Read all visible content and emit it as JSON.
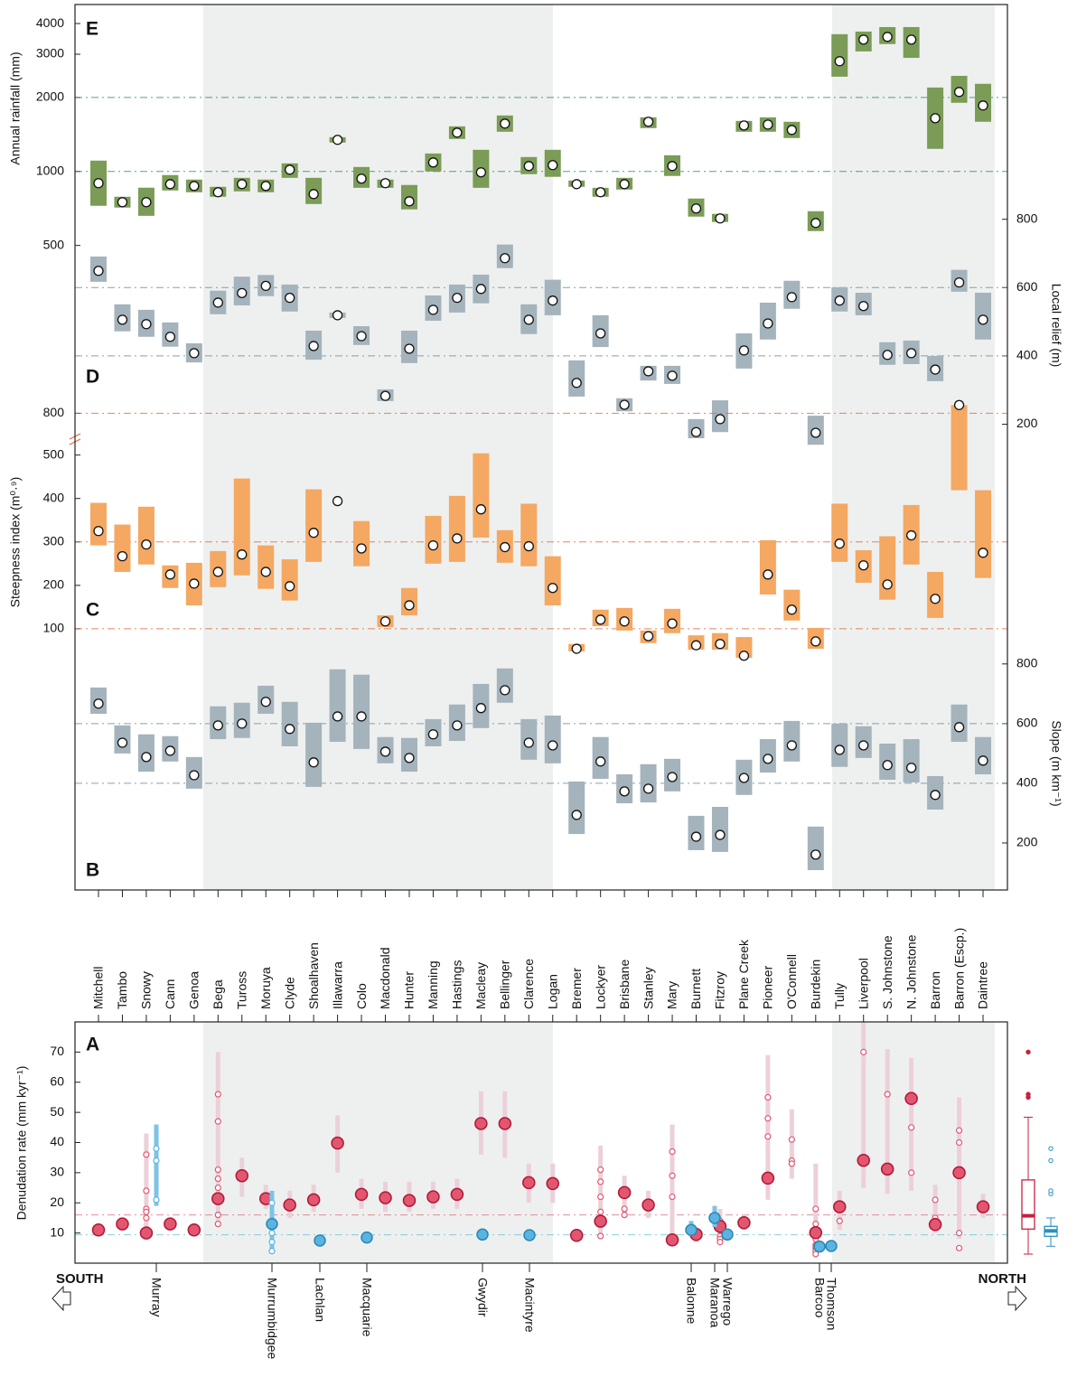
{
  "chart_data": [
    {
      "type": "range",
      "panel": "E",
      "ylabel": "Annual rainfall (mm)",
      "axis_side": "left",
      "log": true,
      "ylim": [
        400,
        4700
      ],
      "yticks": [
        500,
        1000,
        2000,
        3000,
        4000
      ],
      "dashed_lines": [
        1000,
        2000
      ],
      "color": "#7b9c57",
      "axis_color": "#2f8a55",
      "median": [
        896,
        750,
        750,
        888,
        873,
        823,
        888,
        873,
        1017,
        809,
        1345,
        935,
        896,
        756,
        1088,
        1439,
        992,
        1566,
        1052,
        1061,
        888,
        823,
        888,
        1593,
        1052,
        707,
        644,
        1539,
        1552,
        1476,
        617,
        2810,
        3440,
        3530,
        3440,
        1647,
        2106,
        1855
      ],
      "low": [
        725,
        713,
        660,
        837,
        823,
        789,
        830,
        823,
        942,
        737,
        1311,
        858,
        858,
        701,
        1000,
        1356,
        858,
        1451,
        975,
        951,
        866,
        789,
        844,
        1501,
        959,
        655,
        623,
        1451,
        1451,
        1368,
        572,
        2430,
        3080,
        3300,
        2900,
        1236,
        1903,
        1593
      ],
      "high": [
        1107,
        789,
        859,
        967,
        927,
        866,
        942,
        927,
        1079,
        942,
        1379,
        1043,
        927,
        881,
        1184,
        1526,
        1225,
        1690,
        1145,
        1225,
        919,
        858,
        942,
        1661,
        1164,
        776,
        672,
        1606,
        1661,
        1593,
        689,
        3620,
        3710,
        3870,
        3870,
        2196,
        2450,
        2274
      ]
    },
    {
      "type": "range",
      "panel": "D",
      "ylabel": "Local relief (m)",
      "axis_side": "right",
      "log": false,
      "ylim": [
        130,
        860
      ],
      "yticks": [
        200,
        400,
        600,
        800
      ],
      "dashed_lines": [
        400,
        600
      ],
      "color": "#a4b3bc",
      "axis_color": "#6d8797",
      "median": [
        649,
        506,
        493,
        456,
        408,
        556,
        584,
        605,
        570,
        429,
        519,
        458,
        283,
        421,
        535,
        570,
        596,
        686,
        506,
        562,
        321,
        466,
        257,
        355,
        342,
        177,
        215,
        416,
        495,
        572,
        175,
        562,
        546,
        403,
        408,
        360,
        615,
        506
      ],
      "low": [
        617,
        472,
        456,
        427,
        381,
        522,
        548,
        575,
        530,
        389,
        511,
        432,
        268,
        379,
        503,
        527,
        554,
        657,
        464,
        519,
        281,
        426,
        238,
        328,
        318,
        159,
        177,
        363,
        448,
        538,
        140,
        530,
        519,
        374,
        376,
        326,
        588,
        448
      ],
      "high": [
        691,
        551,
        535,
        498,
        437,
        591,
        632,
        637,
        609,
        474,
        527,
        487,
        302,
        474,
        577,
        609,
        638,
        726,
        551,
        623,
        387,
        519,
        276,
        371,
        371,
        215,
        270,
        466,
        556,
        620,
        225,
        601,
        585,
        440,
        445,
        400,
        652,
        585
      ]
    },
    {
      "type": "range",
      "panel": "C",
      "ylabel": "Steepness index (m⁰·⁹)",
      "axis_side": "left",
      "log": false,
      "ylim": [
        0,
        830
      ],
      "axis_break": {
        "from": 520,
        "to": 780
      },
      "yticks": [
        100,
        200,
        300,
        400,
        500,
        800
      ],
      "dashed_lines": [
        100,
        300,
        800
      ],
      "color": "#f4a862",
      "axis_color": "#e0653a",
      "median": [
        325,
        267,
        294,
        225,
        204,
        231,
        271,
        231,
        198,
        321,
        394,
        285,
        117,
        154,
        292,
        308,
        375,
        288,
        290,
        194,
        54,
        121,
        117,
        83,
        112,
        62,
        65,
        38,
        225,
        144,
        71,
        296,
        246,
        202,
        315,
        169,
        819,
        275
      ],
      "low": [
        292,
        231,
        248,
        194,
        154,
        196,
        223,
        192,
        165,
        254,
        null,
        244,
        104,
        131,
        250,
        254,
        310,
        252,
        244,
        154,
        48,
        106,
        96,
        67,
        90,
        52,
        52,
        33,
        179,
        119,
        54,
        254,
        206,
        167,
        248,
        125,
        419,
        217
      ],
      "high": [
        390,
        340,
        381,
        246,
        252,
        279,
        446,
        292,
        260,
        421,
        null,
        348,
        131,
        194,
        360,
        406,
        504,
        327,
        388,
        267,
        65,
        144,
        148,
        96,
        146,
        85,
        90,
        81,
        304,
        190,
        102,
        388,
        281,
        313,
        385,
        231,
        819,
        419
      ]
    },
    {
      "type": "range",
      "panel": "B",
      "ylabel": "Slope (m km⁻¹)",
      "axis_side": "right",
      "log": false,
      "ylim": [
        100,
        860
      ],
      "yticks": [
        200,
        400,
        600,
        800
      ],
      "dashed_lines": [
        400,
        600
      ],
      "color": "#a4b3bc",
      "axis_color": "#6d8797",
      "median": [
        667,
        536,
        488,
        509,
        427,
        594,
        600,
        673,
        582,
        470,
        624,
        624,
        506,
        485,
        564,
        594,
        652,
        712,
        536,
        527,
        294,
        473,
        373,
        382,
        421,
        221,
        227,
        418,
        482,
        527,
        161,
        512,
        527,
        461,
        452,
        361,
        588,
        476
      ],
      "low": [
        633,
        500,
        439,
        473,
        382,
        548,
        552,
        633,
        524,
        388,
        539,
        515,
        467,
        439,
        524,
        542,
        585,
        670,
        479,
        467,
        230,
        415,
        333,
        336,
        373,
        176,
        170,
        361,
        436,
        473,
        109,
        455,
        485,
        412,
        403,
        312,
        539,
        430
      ],
      "high": [
        721,
        594,
        564,
        558,
        488,
        658,
        670,
        727,
        673,
        603,
        782,
        764,
        555,
        552,
        615,
        664,
        733,
        785,
        615,
        627,
        406,
        555,
        430,
        464,
        482,
        291,
        321,
        479,
        548,
        609,
        255,
        600,
        591,
        533,
        548,
        424,
        664,
        555
      ]
    },
    {
      "type": "dot",
      "panel": "A",
      "ylabel": "Denudation rate (mm kyr⁻¹)",
      "axis_side": "left",
      "ylim": [
        0,
        80
      ],
      "yticks": [
        10,
        20,
        30,
        40,
        50,
        60,
        70
      ],
      "south": "SOUTH",
      "north": "NORTH",
      "categories": [
        "Mitchell",
        "Tambo",
        "Snowy",
        "Cann",
        "Genoa",
        "Bega",
        "Tuross",
        "Moruya",
        "Clyde",
        "Shoalhaven",
        "Illawarra",
        "Colo",
        "Macdonald",
        "Hunter",
        "Manning",
        "Hastings",
        "Macleay",
        "Bellinger",
        "Clarence",
        "Logan",
        "Bremer",
        "Lockyer",
        "Brisbane",
        "Stanley",
        "Mary",
        "Burnett",
        "Fitzroy",
        "Plane Creek",
        "Pioneer",
        "O'Connell",
        "Burdekin",
        "Tully",
        "Liverpool",
        "S. Johnstone",
        "N. Johnstone",
        "Barron",
        "Barron (Escp.)",
        "Daintree"
      ],
      "dashed_lines": [
        {
          "value": 16,
          "color": "#e0707f"
        },
        {
          "value": 9.4,
          "color": "#6cc0d0"
        }
      ],
      "coastal": {
        "color": "#e35670",
        "stroke": "#b01635",
        "range_color": "#ecd0d9",
        "values": [
          11,
          13,
          10,
          13,
          11,
          21.4,
          29,
          21.4,
          19.3,
          21,
          39.8,
          22.8,
          21.7,
          20.8,
          22,
          22.8,
          46.3,
          46.3,
          26.7,
          26.4,
          9.2,
          13.9,
          23.4,
          19.3,
          7.7,
          9.5,
          12.2,
          13.4,
          28.2,
          null,
          10.1,
          18.7,
          34.1,
          31.2,
          54.6,
          12.8,
          30,
          18.7
        ],
        "low": [
          null,
          null,
          9,
          null,
          null,
          12,
          22,
          18,
          15,
          17,
          30,
          18,
          17,
          17,
          18,
          18,
          36,
          35,
          20,
          20,
          null,
          8,
          15,
          15,
          7,
          7,
          7,
          11,
          21,
          28,
          3,
          11,
          25,
          23,
          24,
          10,
          8,
          15
        ],
        "high": [
          null,
          null,
          43,
          null,
          null,
          70,
          35,
          26,
          24,
          26,
          49,
          28,
          27,
          27,
          27,
          28,
          57,
          57,
          33,
          33,
          null,
          39,
          29,
          24,
          46,
          12,
          18,
          16,
          69,
          51,
          33,
          24,
          80,
          71,
          68,
          26,
          55,
          23
        ],
        "samples": [
          [],
          [],
          [
            36,
            24,
            18,
            17,
            15
          ],
          [],
          [],
          [
            56,
            47,
            31,
            28,
            25,
            21,
            16,
            13
          ],
          [],
          [],
          [],
          [],
          [],
          [],
          [],
          [],
          [],
          [],
          [],
          [],
          [],
          [],
          [],
          [
            31,
            27,
            22,
            17,
            9
          ],
          [
            18,
            16
          ],
          [],
          [
            37,
            29,
            22
          ],
          [],
          [
            14,
            11,
            9,
            8,
            7
          ],
          [],
          [
            55,
            48,
            42
          ],
          [
            41,
            34,
            33
          ],
          [
            18,
            13,
            11,
            8,
            6,
            5,
            4,
            3
          ],
          [
            14
          ],
          [
            70
          ],
          [
            56
          ],
          [
            45,
            30
          ],
          [
            21,
            15,
            14
          ],
          [
            44,
            40,
            10,
            5
          ],
          []
        ]
      },
      "inland": {
        "color": "#5ab4df",
        "stroke": "#2a86b8",
        "range_color": "#7cc3e6",
        "names": [
          "Murray",
          "Murrumbidgee",
          "Lachlan",
          "Macquarie",
          "Gwydir",
          "Macintyre",
          "Balonne",
          "Maranoa",
          "Warrego",
          "Barcoo",
          "Thomson"
        ],
        "values": [
          null,
          13,
          7.5,
          8.5,
          9.5,
          9.3,
          11,
          15,
          9.5,
          5.5,
          5.7
        ],
        "low": [
          19,
          4,
          null,
          null,
          null,
          null,
          9,
          12,
          null,
          null,
          null
        ],
        "high": [
          46,
          24,
          null,
          null,
          null,
          null,
          14,
          19,
          null,
          null,
          null
        ],
        "samples": [
          [
            38,
            34,
            21
          ],
          [
            20,
            10,
            7,
            4
          ],
          [],
          [],
          [],
          [],
          [],
          [],
          [],
          [],
          []
        ]
      },
      "boxplots": [
        {
          "color": "#c8203e",
          "whislo": 3,
          "q1": 11.3,
          "median": 15.7,
          "q3": 27.6,
          "whishi": 48.4,
          "fliers": [
            55,
            56,
            70
          ]
        },
        {
          "color": "#2a8fc4",
          "whislo": 5.6,
          "q1": 8.9,
          "median": 10.7,
          "q3": 12.2,
          "whishi": 15,
          "fliers": [
            23,
            24,
            34,
            38
          ]
        }
      ]
    }
  ]
}
